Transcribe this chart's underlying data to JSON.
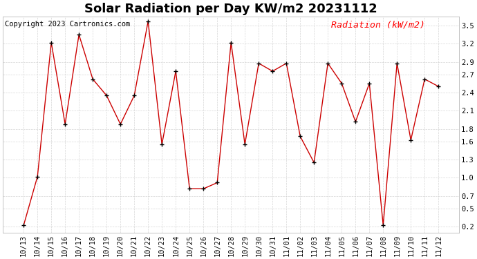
{
  "title": "Solar Radiation per Day KW/m2 20231112",
  "copyright": "Copyright 2023 Cartronics.com",
  "legend_label": "Radiation (kW/m2)",
  "dates": [
    "10/13",
    "10/14",
    "10/15",
    "10/16",
    "10/17",
    "10/18",
    "10/19",
    "10/20",
    "10/21",
    "10/22",
    "10/23",
    "10/24",
    "10/25",
    "10/26",
    "10/27",
    "10/28",
    "10/29",
    "10/30",
    "10/31",
    "11/01",
    "11/02",
    "11/03",
    "11/04",
    "11/05",
    "11/06",
    "11/07",
    "11/08",
    "11/09",
    "11/10",
    "11/11",
    "11/12"
  ],
  "values": [
    0.22,
    1.02,
    3.22,
    1.88,
    3.35,
    2.62,
    2.35,
    1.88,
    2.35,
    3.57,
    1.55,
    2.75,
    0.82,
    0.82,
    0.92,
    3.22,
    1.55,
    2.88,
    2.75,
    2.88,
    1.68,
    1.25,
    2.88,
    2.55,
    1.92,
    2.55,
    0.22,
    2.88,
    1.62,
    2.62,
    2.5
  ],
  "line_color": "#cc0000",
  "marker_color": "#000000",
  "ylim": [
    0.1,
    3.65
  ],
  "yticks": [
    0.2,
    0.5,
    0.7,
    1.0,
    1.3,
    1.6,
    1.8,
    2.1,
    2.4,
    2.7,
    2.9,
    3.2,
    3.5
  ],
  "background_color": "#ffffff",
  "grid_color": "#cccccc",
  "title_fontsize": 13,
  "tick_fontsize": 7.5,
  "copyright_fontsize": 7.5,
  "legend_fontsize": 9.5
}
